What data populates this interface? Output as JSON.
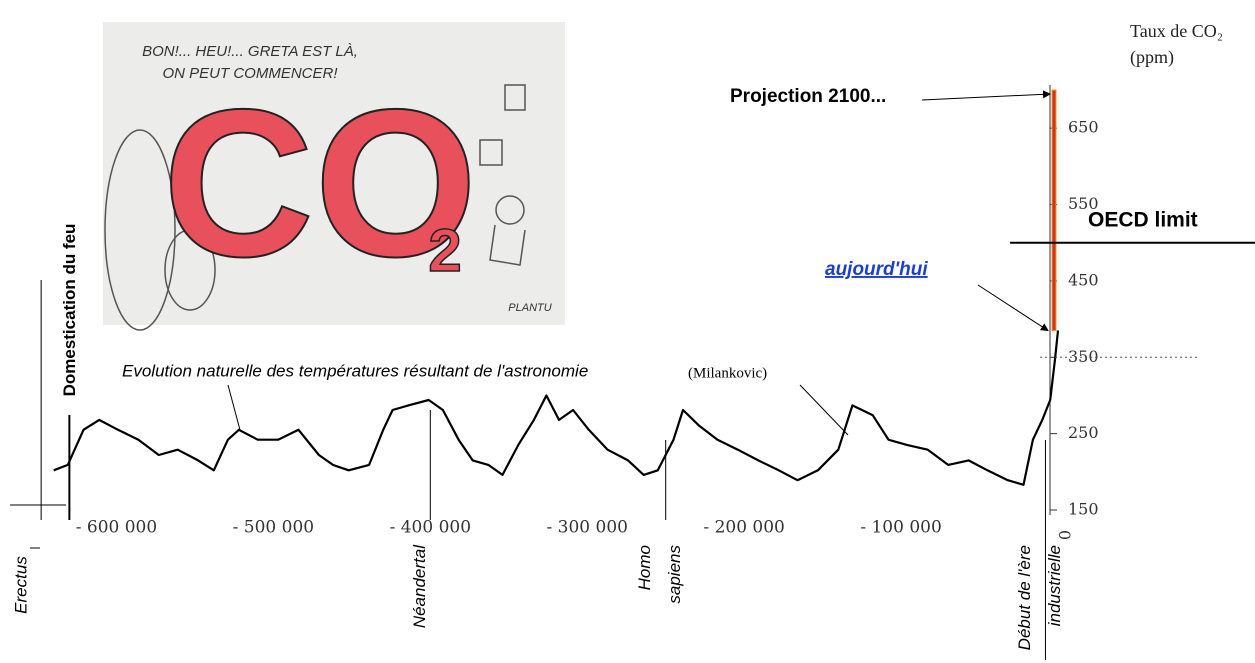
{
  "chart_data": {
    "type": "line",
    "ylabel": "Taux de CO₂ (ppm)",
    "annotation": "Evolution naturelle des températures résultant de l'astronomie",
    "annotation_source": "(Milankovic)",
    "projection_label": "Projection 2100...",
    "today_label": "aujourd'hui",
    "limit_label": "OECD limit",
    "limit_value": 500,
    "projection_bar": {
      "from": 385,
      "to": 700
    },
    "color": "#000000",
    "x": [
      -640000,
      -631000,
      -621000,
      -611000,
      -599000,
      -586000,
      -573000,
      -561000,
      -548000,
      -538000,
      -529000,
      -522000,
      -510000,
      -497000,
      -484000,
      -471000,
      -462000,
      -452000,
      -439000,
      -430000,
      -424000,
      -414000,
      -401000,
      -392000,
      -382000,
      -373000,
      -363000,
      -354000,
      -344000,
      -334000,
      -326000,
      -318000,
      -309000,
      -299000,
      -287000,
      -274000,
      -264000,
      -255000,
      -245000,
      -239000,
      -229000,
      -217000,
      -204000,
      -191000,
      -178000,
      -166000,
      -153000,
      -140000,
      -131000,
      -118000,
      -108000,
      -96000,
      -83000,
      -70000,
      -57000,
      -45000,
      -32000,
      -22000,
      -16000,
      -10000,
      -5000,
      -2000,
      0
    ],
    "values": [
      202,
      209,
      255,
      268,
      255,
      242,
      222,
      229,
      215,
      202,
      242,
      255,
      242,
      242,
      255,
      222,
      209,
      202,
      209,
      255,
      281,
      287,
      294,
      281,
      242,
      215,
      209,
      196,
      235,
      268,
      300,
      268,
      281,
      255,
      229,
      215,
      196,
      202,
      242,
      281,
      261,
      242,
      229,
      215,
      202,
      189,
      202,
      229,
      287,
      274,
      242,
      235,
      229,
      209,
      215,
      202,
      189,
      183,
      242,
      268,
      294,
      346,
      385
    ],
    "xlim": [
      -650000,
      0
    ],
    "xticks": [
      {
        "value": -600000,
        "label": "- 600 000"
      },
      {
        "value": -500000,
        "label": "- 500 000"
      },
      {
        "value": -400000,
        "label": "- 400 000"
      },
      {
        "value": -300000,
        "label": "- 300 000"
      },
      {
        "value": -200000,
        "label": "- 200 000"
      },
      {
        "value": -100000,
        "label": "- 100 000"
      },
      0
    ],
    "ylim": [
      150,
      700
    ],
    "yticks": [
      150,
      250,
      350,
      450,
      550,
      650
    ],
    "events": [
      {
        "label_lines": [
          "Erectus"
        ],
        "x": -648000
      },
      {
        "label_lines": [
          "Domestication du feu"
        ],
        "x": -630000
      },
      {
        "label_lines": [
          "Néandertal"
        ],
        "x": -400000
      },
      {
        "label_lines": [
          "Homo",
          "sapiens"
        ],
        "x": -250000
      },
      {
        "label_lines": [
          "Début de l'ère",
          "industrielle"
        ],
        "x": -8000
      }
    ],
    "cartoon": {
      "speech_lines": [
        "BON!... HEU!... GRETA EST LÀ,",
        "ON PEUT COMMENCER!"
      ],
      "big_text": "CO",
      "subscript": "2",
      "signature": "PLANTU"
    }
  }
}
